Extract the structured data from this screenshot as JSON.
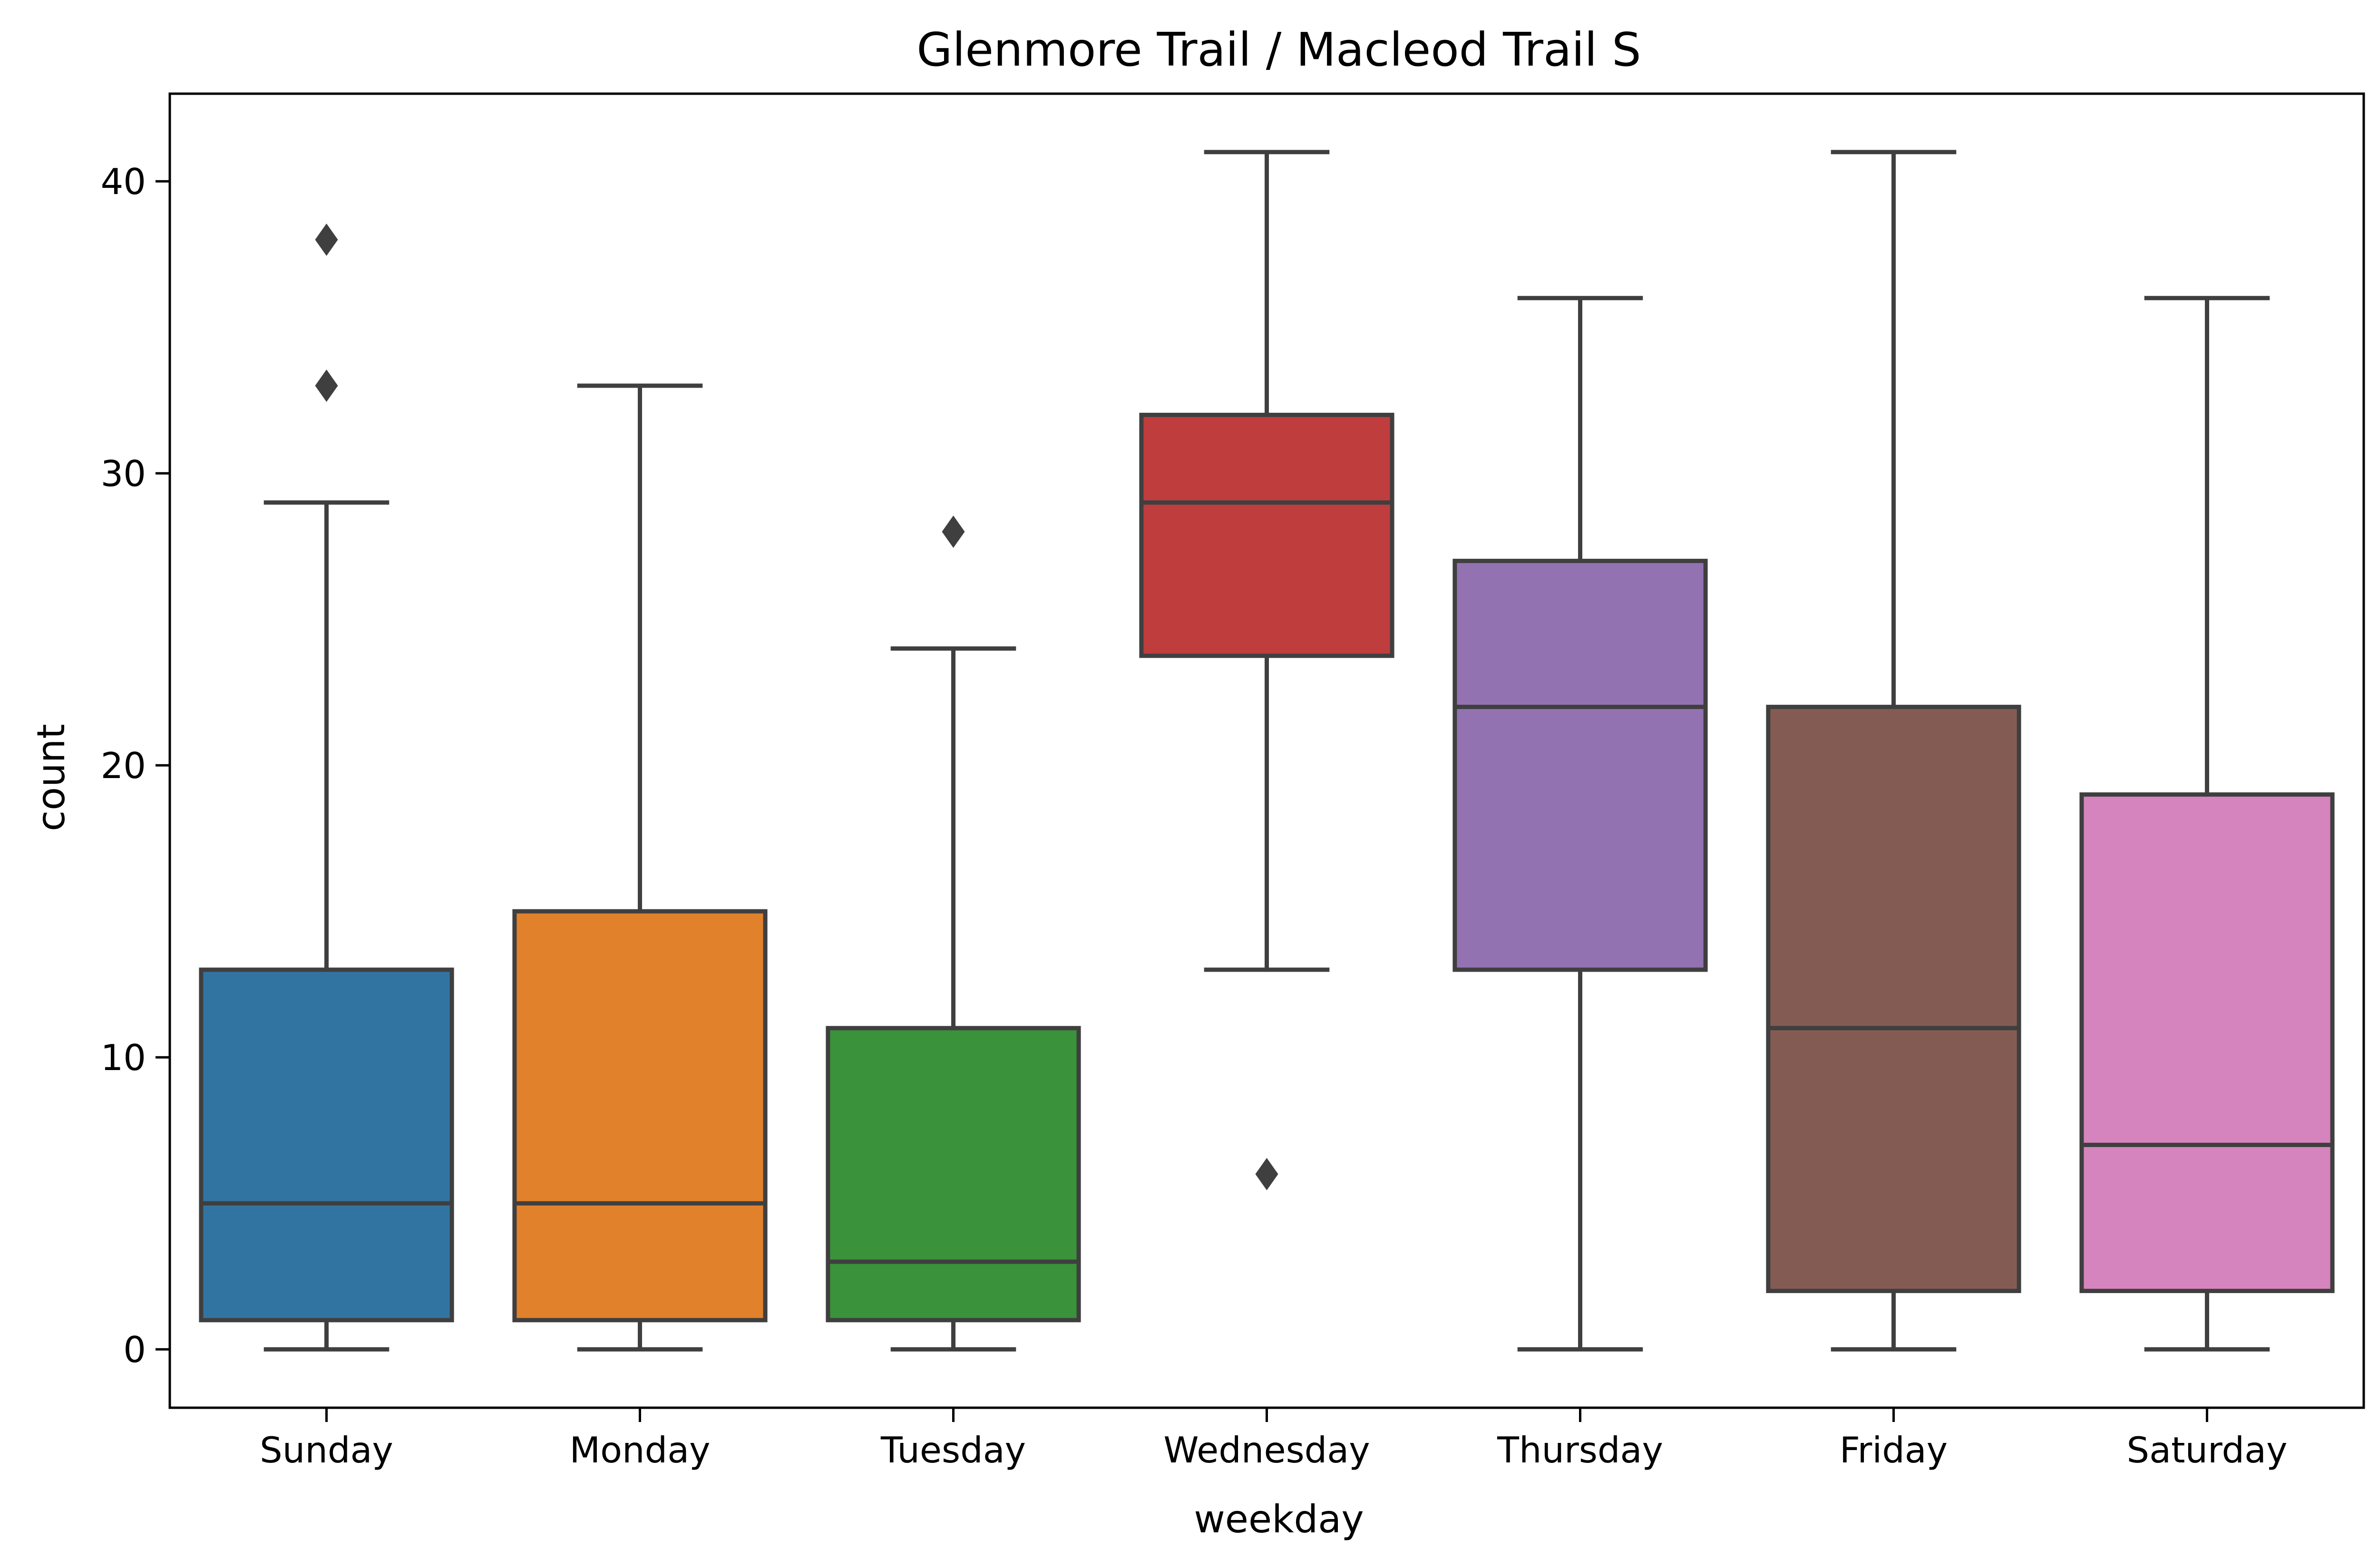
{
  "chart_data": {
    "type": "box",
    "title": "Glenmore Trail / Macleod Trail S",
    "xlabel": "weekday",
    "ylabel": "count",
    "ylim": [
      -2,
      43
    ],
    "yticks": [
      0,
      10,
      20,
      30,
      40
    ],
    "grid": false,
    "categories": [
      "Sunday",
      "Monday",
      "Tuesday",
      "Wednesday",
      "Thursday",
      "Friday",
      "Saturday"
    ],
    "boxes": [
      {
        "category": "Sunday",
        "whisker_low": 0,
        "q1": 1,
        "median": 5,
        "q3": 13,
        "whisker_high": 29,
        "outliers": [
          33,
          38
        ],
        "color": "#3274a1"
      },
      {
        "category": "Monday",
        "whisker_low": 0,
        "q1": 1,
        "median": 5,
        "q3": 15,
        "whisker_high": 33,
        "outliers": [],
        "color": "#e1812c"
      },
      {
        "category": "Tuesday",
        "whisker_low": 0,
        "q1": 1,
        "median": 3,
        "q3": 11,
        "whisker_high": 24,
        "outliers": [
          28
        ],
        "color": "#3a923a"
      },
      {
        "category": "Wednesday",
        "whisker_low": 13,
        "q1": 23.75,
        "median": 29,
        "q3": 32,
        "whisker_high": 41,
        "outliers": [
          6
        ],
        "color": "#c03d3e"
      },
      {
        "category": "Thursday",
        "whisker_low": 0,
        "q1": 13,
        "median": 22,
        "q3": 27,
        "whisker_high": 36,
        "outliers": [],
        "color": "#9372b2"
      },
      {
        "category": "Friday",
        "whisker_low": 0,
        "q1": 2,
        "median": 11,
        "q3": 22,
        "whisker_high": 41,
        "outliers": [],
        "color": "#845b53"
      },
      {
        "category": "Saturday",
        "whisker_low": 0,
        "q1": 2,
        "median": 7,
        "q3": 19,
        "whisker_high": 36,
        "outliers": [],
        "color": "#d684bd"
      }
    ]
  }
}
